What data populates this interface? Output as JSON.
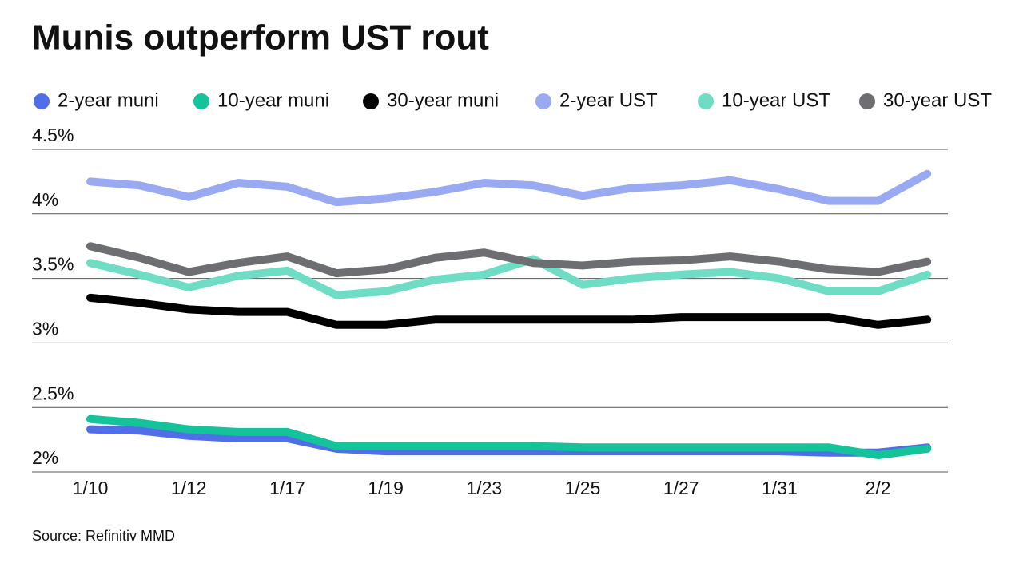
{
  "chart_data": {
    "type": "line",
    "title": "Munis outperform UST rout",
    "categories": [
      "1/10",
      null,
      "1/12",
      null,
      "1/17",
      null,
      "1/19",
      null,
      "1/23",
      null,
      "1/25",
      null,
      "1/27",
      null,
      "1/31",
      null,
      "2/2",
      null
    ],
    "series": [
      {
        "name": "2-year muni",
        "color": "#4f6ee8",
        "values": [
          2.33,
          2.32,
          2.28,
          2.26,
          2.26,
          2.18,
          2.16,
          2.16,
          2.16,
          2.16,
          2.16,
          2.16,
          2.16,
          2.16,
          2.16,
          2.15,
          2.15,
          2.19
        ]
      },
      {
        "name": "10-year muni",
        "color": "#14c39a",
        "values": [
          2.41,
          2.38,
          2.33,
          2.31,
          2.31,
          2.2,
          2.2,
          2.2,
          2.2,
          2.2,
          2.19,
          2.19,
          2.19,
          2.19,
          2.19,
          2.19,
          2.13,
          2.18
        ]
      },
      {
        "name": "30-year muni",
        "color": "#000000",
        "values": [
          3.35,
          3.31,
          3.26,
          3.24,
          3.24,
          3.14,
          3.14,
          3.18,
          3.18,
          3.18,
          3.18,
          3.18,
          3.2,
          3.2,
          3.2,
          3.2,
          3.14,
          3.18
        ]
      },
      {
        "name": "2-year UST",
        "color": "#9aaaf2",
        "values": [
          4.25,
          4.22,
          4.13,
          4.24,
          4.21,
          4.09,
          4.12,
          4.17,
          4.24,
          4.22,
          4.14,
          4.2,
          4.22,
          4.26,
          4.19,
          4.1,
          4.1,
          4.31
        ]
      },
      {
        "name": "10-year UST",
        "color": "#6fdcc4",
        "values": [
          3.62,
          3.53,
          3.43,
          3.52,
          3.56,
          3.37,
          3.4,
          3.49,
          3.53,
          3.65,
          3.45,
          3.5,
          3.53,
          3.55,
          3.5,
          3.4,
          3.4,
          3.53
        ]
      },
      {
        "name": "30-year UST",
        "color": "#6d6e72",
        "values": [
          3.75,
          3.66,
          3.55,
          3.62,
          3.67,
          3.54,
          3.57,
          3.66,
          3.7,
          3.62,
          3.6,
          3.63,
          3.64,
          3.67,
          3.63,
          3.57,
          3.55,
          3.63
        ]
      }
    ],
    "ylim": [
      2,
      4.5
    ],
    "yticks": [
      {
        "value": 2,
        "label": "2%"
      },
      {
        "value": 2.5,
        "label": "2.5%"
      },
      {
        "value": 3,
        "label": "3%"
      },
      {
        "value": 3.5,
        "label": "3.5%"
      },
      {
        "value": 4,
        "label": "4%"
      },
      {
        "value": 4.5,
        "label": "4.5%"
      }
    ],
    "grid": true,
    "source": "Source: Refinitiv MMD"
  }
}
